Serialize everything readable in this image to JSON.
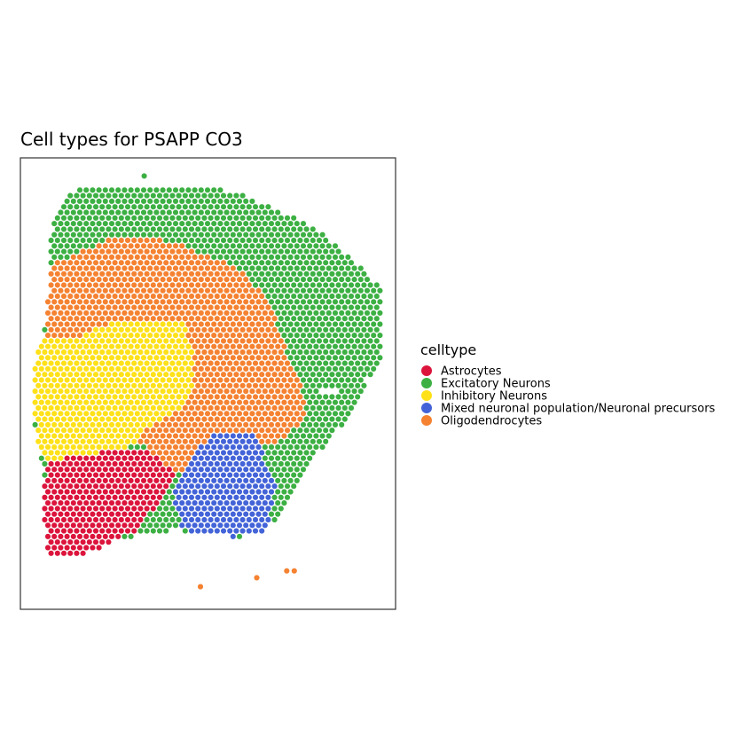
{
  "chart_data": {
    "type": "scatter",
    "title": "Cell types for PSAPP CO3",
    "xlabel": "",
    "ylabel": "",
    "grid": false,
    "legend_position": "right",
    "legend": {
      "title": "celltype",
      "entries": [
        {
          "name": "Astrocytes",
          "color": "#DC143C"
        },
        {
          "name": "Excitatory Neurons",
          "color": "#3CB043"
        },
        {
          "name": "Inhibitory Neurons",
          "color": "#FFE119"
        },
        {
          "name": "Mixed neuronal population/Neuronal precursors",
          "color": "#4363D8"
        },
        {
          "name": "Oligodendrocytes",
          "color": "#F58231"
        }
      ]
    },
    "outlier_spots": [
      {
        "x": 0.48,
        "y": 0.05,
        "celltype": "Oligodendrocytes"
      },
      {
        "x": 0.63,
        "y": 0.07,
        "celltype": "Oligodendrocytes"
      },
      {
        "x": 0.71,
        "y": 0.085,
        "celltype": "Oligodendrocytes"
      },
      {
        "x": 0.73,
        "y": 0.085,
        "celltype": "Oligodendrocytes"
      },
      {
        "x": 0.33,
        "y": 0.96,
        "celltype": "Excitatory Neurons"
      }
    ]
  }
}
